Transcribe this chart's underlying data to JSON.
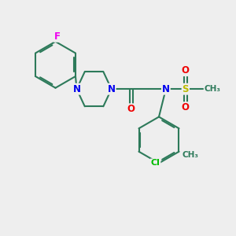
{
  "background_color": "#eeeeee",
  "bond_color": "#2d7a5a",
  "bond_width": 1.5,
  "atom_colors": {
    "N": "#0000ee",
    "O": "#ee0000",
    "F": "#ee00ee",
    "S": "#bbbb00",
    "Cl": "#00bb00",
    "C": "#2d7a5a"
  },
  "font_size": 8.5,
  "figsize": [
    3.0,
    3.0
  ],
  "dpi": 100
}
